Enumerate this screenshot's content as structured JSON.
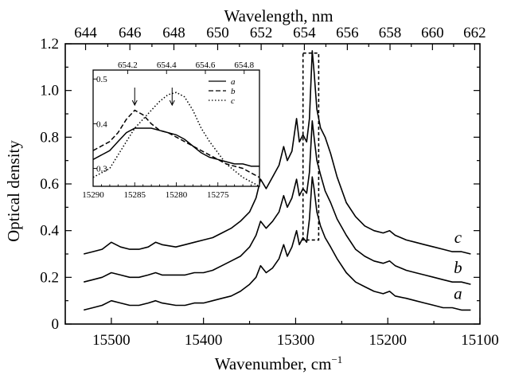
{
  "chart_data": {
    "type": "line",
    "main": {
      "xlabel_bottom": "Wavenumber, cm",
      "xlabel_bottom_sup": "−1",
      "xlabel_top": "Wavelength, nm",
      "ylabel": "Optical density",
      "xlim": [
        15550,
        15100
      ],
      "ylim": [
        0,
        1.2
      ],
      "x_ticks": [
        15500,
        15400,
        15300,
        15200,
        15100
      ],
      "y_ticks": [
        "0",
        "0.2",
        "0.4",
        "0.6",
        "0.8",
        "1.0",
        "1.2"
      ],
      "top_ticks": [
        644,
        646,
        648,
        650,
        652,
        654,
        656,
        658,
        660,
        662
      ],
      "highlight_box": {
        "x_range": [
          15292,
          15275
        ],
        "y_range": [
          0.36,
          1.16
        ]
      },
      "series": [
        {
          "label": "a",
          "points": [
            [
              15530,
              0.06
            ],
            [
              15520,
              0.07
            ],
            [
              15510,
              0.08
            ],
            [
              15500,
              0.1
            ],
            [
              15490,
              0.09
            ],
            [
              15480,
              0.08
            ],
            [
              15470,
              0.08
            ],
            [
              15460,
              0.09
            ],
            [
              15452,
              0.1
            ],
            [
              15445,
              0.09
            ],
            [
              15430,
              0.08
            ],
            [
              15420,
              0.08
            ],
            [
              15410,
              0.09
            ],
            [
              15400,
              0.09
            ],
            [
              15390,
              0.1
            ],
            [
              15380,
              0.11
            ],
            [
              15370,
              0.12
            ],
            [
              15360,
              0.14
            ],
            [
              15350,
              0.17
            ],
            [
              15343,
              0.2
            ],
            [
              15338,
              0.25
            ],
            [
              15332,
              0.22
            ],
            [
              15325,
              0.24
            ],
            [
              15318,
              0.28
            ],
            [
              15313,
              0.34
            ],
            [
              15309,
              0.29
            ],
            [
              15304,
              0.33
            ],
            [
              15299,
              0.4
            ],
            [
              15296,
              0.34
            ],
            [
              15292,
              0.37
            ],
            [
              15288,
              0.35
            ],
            [
              15285,
              0.45
            ],
            [
              15282,
              0.63
            ],
            [
              15280,
              0.58
            ],
            [
              15277,
              0.48
            ],
            [
              15273,
              0.42
            ],
            [
              15268,
              0.37
            ],
            [
              15262,
              0.33
            ],
            [
              15255,
              0.28
            ],
            [
              15245,
              0.22
            ],
            [
              15235,
              0.18
            ],
            [
              15225,
              0.16
            ],
            [
              15215,
              0.14
            ],
            [
              15205,
              0.13
            ],
            [
              15198,
              0.14
            ],
            [
              15192,
              0.12
            ],
            [
              15180,
              0.11
            ],
            [
              15170,
              0.1
            ],
            [
              15160,
              0.09
            ],
            [
              15150,
              0.08
            ],
            [
              15140,
              0.07
            ],
            [
              15130,
              0.07
            ],
            [
              15120,
              0.06
            ],
            [
              15110,
              0.06
            ]
          ]
        },
        {
          "label": "b",
          "points": [
            [
              15530,
              0.18
            ],
            [
              15520,
              0.19
            ],
            [
              15510,
              0.2
            ],
            [
              15500,
              0.22
            ],
            [
              15490,
              0.21
            ],
            [
              15480,
              0.2
            ],
            [
              15470,
              0.2
            ],
            [
              15460,
              0.21
            ],
            [
              15452,
              0.22
            ],
            [
              15445,
              0.21
            ],
            [
              15430,
              0.21
            ],
            [
              15420,
              0.21
            ],
            [
              15410,
              0.22
            ],
            [
              15400,
              0.22
            ],
            [
              15390,
              0.23
            ],
            [
              15380,
              0.25
            ],
            [
              15370,
              0.27
            ],
            [
              15360,
              0.29
            ],
            [
              15350,
              0.33
            ],
            [
              15343,
              0.38
            ],
            [
              15338,
              0.44
            ],
            [
              15332,
              0.41
            ],
            [
              15325,
              0.44
            ],
            [
              15318,
              0.48
            ],
            [
              15313,
              0.55
            ],
            [
              15309,
              0.5
            ],
            [
              15304,
              0.54
            ],
            [
              15299,
              0.62
            ],
            [
              15296,
              0.55
            ],
            [
              15292,
              0.58
            ],
            [
              15288,
              0.56
            ],
            [
              15285,
              0.65
            ],
            [
              15282,
              0.87
            ],
            [
              15280,
              0.8
            ],
            [
              15277,
              0.7
            ],
            [
              15273,
              0.64
            ],
            [
              15268,
              0.57
            ],
            [
              15262,
              0.52
            ],
            [
              15255,
              0.45
            ],
            [
              15245,
              0.38
            ],
            [
              15235,
              0.32
            ],
            [
              15225,
              0.29
            ],
            [
              15215,
              0.27
            ],
            [
              15205,
              0.26
            ],
            [
              15198,
              0.27
            ],
            [
              15192,
              0.25
            ],
            [
              15180,
              0.23
            ],
            [
              15170,
              0.22
            ],
            [
              15160,
              0.21
            ],
            [
              15150,
              0.2
            ],
            [
              15140,
              0.19
            ],
            [
              15130,
              0.18
            ],
            [
              15120,
              0.18
            ],
            [
              15110,
              0.17
            ]
          ]
        },
        {
          "label": "c",
          "points": [
            [
              15530,
              0.3
            ],
            [
              15520,
              0.31
            ],
            [
              15510,
              0.32
            ],
            [
              15500,
              0.35
            ],
            [
              15490,
              0.33
            ],
            [
              15480,
              0.32
            ],
            [
              15470,
              0.32
            ],
            [
              15460,
              0.33
            ],
            [
              15452,
              0.35
            ],
            [
              15445,
              0.34
            ],
            [
              15430,
              0.33
            ],
            [
              15420,
              0.34
            ],
            [
              15410,
              0.35
            ],
            [
              15400,
              0.36
            ],
            [
              15390,
              0.37
            ],
            [
              15380,
              0.39
            ],
            [
              15370,
              0.41
            ],
            [
              15360,
              0.44
            ],
            [
              15350,
              0.48
            ],
            [
              15343,
              0.54
            ],
            [
              15338,
              0.62
            ],
            [
              15332,
              0.58
            ],
            [
              15325,
              0.63
            ],
            [
              15318,
              0.68
            ],
            [
              15313,
              0.76
            ],
            [
              15309,
              0.7
            ],
            [
              15304,
              0.74
            ],
            [
              15299,
              0.88
            ],
            [
              15296,
              0.78
            ],
            [
              15292,
              0.81
            ],
            [
              15288,
              0.78
            ],
            [
              15285,
              0.88
            ],
            [
              15282,
              1.17
            ],
            [
              15280,
              1.08
            ],
            [
              15277,
              0.92
            ],
            [
              15273,
              0.84
            ],
            [
              15268,
              0.8
            ],
            [
              15262,
              0.73
            ],
            [
              15255,
              0.63
            ],
            [
              15245,
              0.52
            ],
            [
              15235,
              0.46
            ],
            [
              15225,
              0.42
            ],
            [
              15215,
              0.4
            ],
            [
              15205,
              0.39
            ],
            [
              15198,
              0.4
            ],
            [
              15192,
              0.38
            ],
            [
              15180,
              0.36
            ],
            [
              15170,
              0.35
            ],
            [
              15160,
              0.34
            ],
            [
              15150,
              0.33
            ],
            [
              15140,
              0.32
            ],
            [
              15130,
              0.31
            ],
            [
              15120,
              0.31
            ],
            [
              15110,
              0.3
            ]
          ]
        }
      ]
    },
    "inset": {
      "xlim": [
        15290,
        15270
      ],
      "ylim": [
        0.26,
        0.52
      ],
      "x_ticks": [
        15290,
        15285,
        15280,
        15275
      ],
      "top_ticks": [
        654.2,
        654.4,
        654.6,
        654.8
      ],
      "y_ticks": [
        "0.3",
        "0.4",
        "0.5"
      ],
      "arrows_at": [
        15285,
        15280.5
      ],
      "legend": [
        "a",
        "b",
        "c"
      ],
      "series": [
        {
          "label": "a",
          "style": "solid",
          "points": [
            [
              15290,
              0.32
            ],
            [
              15288,
              0.34
            ],
            [
              15287,
              0.36
            ],
            [
              15286,
              0.38
            ],
            [
              15285,
              0.39
            ],
            [
              15284,
              0.39
            ],
            [
              15283,
              0.39
            ],
            [
              15282,
              0.385
            ],
            [
              15281,
              0.38
            ],
            [
              15280,
              0.375
            ],
            [
              15279,
              0.365
            ],
            [
              15278,
              0.35
            ],
            [
              15277,
              0.335
            ],
            [
              15276,
              0.325
            ],
            [
              15275,
              0.32
            ],
            [
              15274,
              0.315
            ],
            [
              15273,
              0.31
            ],
            [
              15272,
              0.31
            ],
            [
              15271,
              0.305
            ],
            [
              15270,
              0.305
            ]
          ]
        },
        {
          "label": "b",
          "style": "dashed",
          "points": [
            [
              15290,
              0.34
            ],
            [
              15288,
              0.36
            ],
            [
              15287,
              0.38
            ],
            [
              15286,
              0.41
            ],
            [
              15285,
              0.43
            ],
            [
              15284,
              0.42
            ],
            [
              15283,
              0.4
            ],
            [
              15282,
              0.385
            ],
            [
              15281,
              0.38
            ],
            [
              15280,
              0.37
            ],
            [
              15279,
              0.36
            ],
            [
              15278,
              0.35
            ],
            [
              15277,
              0.34
            ],
            [
              15276,
              0.33
            ],
            [
              15275,
              0.32
            ],
            [
              15274,
              0.31
            ],
            [
              15273,
              0.305
            ],
            [
              15272,
              0.3
            ],
            [
              15271,
              0.29
            ],
            [
              15270,
              0.28
            ]
          ]
        },
        {
          "label": "c",
          "style": "dotted",
          "points": [
            [
              15290,
              0.28
            ],
            [
              15288,
              0.3
            ],
            [
              15287,
              0.33
            ],
            [
              15286,
              0.36
            ],
            [
              15285,
              0.39
            ],
            [
              15284,
              0.41
            ],
            [
              15283,
              0.43
            ],
            [
              15282,
              0.45
            ],
            [
              15281,
              0.465
            ],
            [
              15280,
              0.47
            ],
            [
              15279,
              0.46
            ],
            [
              15278,
              0.43
            ],
            [
              15277,
              0.39
            ],
            [
              15276,
              0.36
            ],
            [
              15275,
              0.335
            ],
            [
              15274,
              0.31
            ],
            [
              15273,
              0.295
            ],
            [
              15272,
              0.28
            ],
            [
              15271,
              0.27
            ],
            [
              15270,
              0.26
            ]
          ]
        }
      ]
    }
  }
}
